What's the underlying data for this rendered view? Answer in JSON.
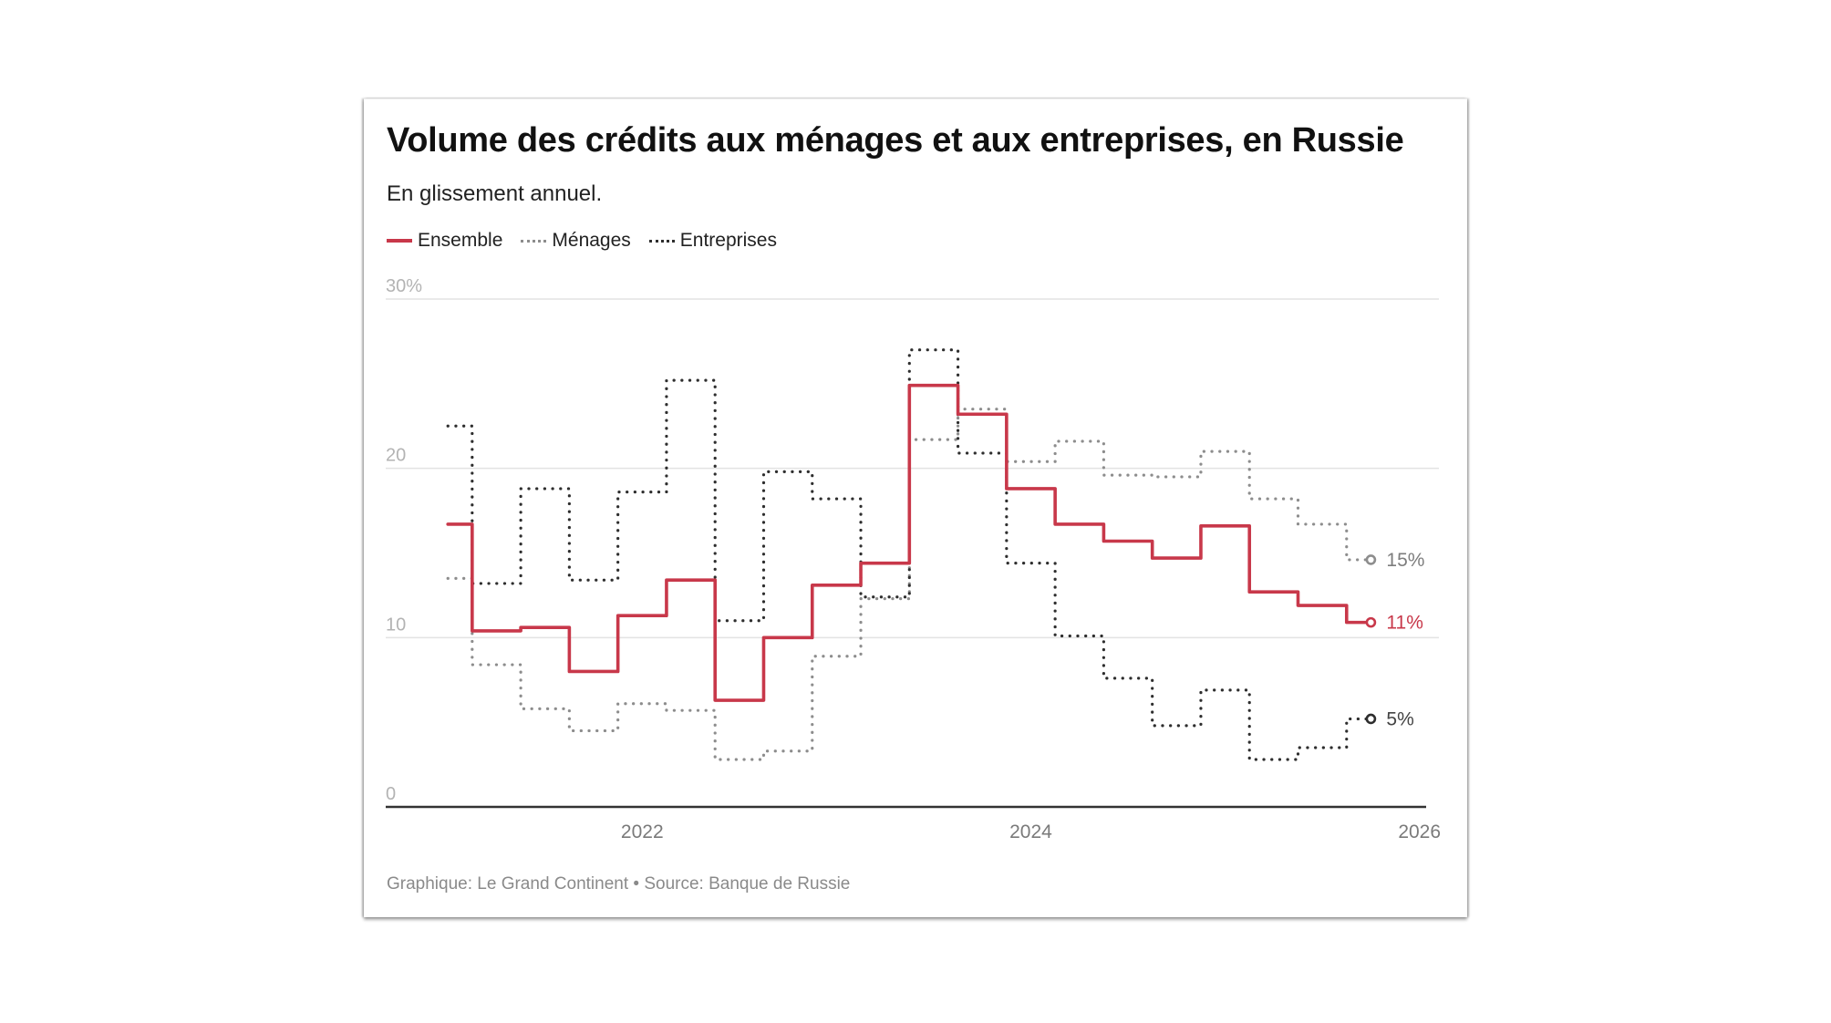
{
  "chart_data": {
    "type": "line",
    "step": "middle",
    "title": "Volume des crédits aux ménages et aux entreprises, en Russie",
    "subtitle": "En glissement annuel.",
    "footer": "Graphique: Le Grand Continent • Source: Banque de Russie",
    "xlabel": "",
    "ylabel": "",
    "x": [
      2021.0,
      2021.25,
      2021.5,
      2021.75,
      2022.0,
      2022.25,
      2022.5,
      2022.75,
      2023.0,
      2023.25,
      2023.5,
      2023.75,
      2024.0,
      2024.25,
      2024.5,
      2024.75,
      2025.0,
      2025.25,
      2025.5,
      2025.75
    ],
    "xlim": [
      2020.68,
      2026.1
    ],
    "ylim": [
      0,
      30
    ],
    "x_ticks": [
      {
        "value": 2022,
        "label": "2022"
      },
      {
        "value": 2024,
        "label": "2024"
      },
      {
        "value": 2026,
        "label": "2026"
      }
    ],
    "y_ticks": [
      {
        "value": 0,
        "label": "0"
      },
      {
        "value": 10,
        "label": "10"
      },
      {
        "value": 20,
        "label": "20"
      },
      {
        "value": 30,
        "label": "30%"
      }
    ],
    "grid": true,
    "legend_position": "top-left",
    "series": [
      {
        "name": "Ensemble",
        "style": "solid",
        "color": "#c8384a",
        "label_color": "#c8384a",
        "end_label": "11%",
        "values": [
          16.7,
          10.4,
          10.6,
          8.0,
          11.3,
          13.4,
          6.3,
          10.0,
          13.1,
          14.4,
          24.9,
          23.2,
          18.8,
          16.7,
          15.7,
          14.7,
          16.6,
          12.7,
          11.9,
          10.9
        ]
      },
      {
        "name": "Ménages",
        "style": "dotted",
        "color": "#8d8d8d",
        "label_color": "#7d7d7d",
        "end_label": "15%",
        "values": [
          13.5,
          8.4,
          5.8,
          4.5,
          6.1,
          5.7,
          2.8,
          3.3,
          8.9,
          12.3,
          21.7,
          23.5,
          20.4,
          21.6,
          19.6,
          19.5,
          21.0,
          18.2,
          16.7,
          14.6
        ]
      },
      {
        "name": "Entreprises",
        "style": "dotted",
        "color": "#2e2e2e",
        "label_color": "#444444",
        "end_label": "5%",
        "values": [
          22.5,
          13.2,
          18.8,
          13.4,
          18.6,
          25.2,
          11.0,
          19.8,
          18.2,
          12.4,
          27.0,
          20.9,
          14.4,
          10.1,
          7.6,
          4.8,
          6.9,
          2.8,
          3.5,
          5.2
        ]
      }
    ]
  }
}
